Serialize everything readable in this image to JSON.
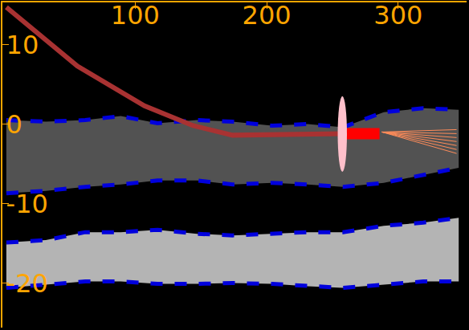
{
  "chart_data": {
    "type": "line",
    "xlim": [
      -1,
      352
    ],
    "ylim": [
      -25.6,
      15.3
    ],
    "xticks": [
      100,
      200,
      300
    ],
    "yticks": [
      10,
      0,
      -10,
      -20
    ],
    "grid": false,
    "series": [
      {
        "type": "line",
        "line_style": "dash",
        "color": "#0000dd",
        "x": [
          2,
          32,
          62,
          89,
          117,
          147,
          174,
          204,
          231,
          258,
          289,
          319,
          346
        ],
        "values": [
          0.5,
          0.3,
          0.5,
          1.0,
          0.1,
          0.5,
          0.3,
          -0.2,
          0.0,
          -0.4,
          1.5,
          2.0,
          1.8
        ]
      },
      {
        "type": "line",
        "line_style": "dash",
        "color": "#0000dd",
        "x": [
          2,
          32,
          62,
          89,
          117,
          147,
          174,
          204,
          231,
          258,
          289,
          319,
          346
        ],
        "values": [
          -8.7,
          -8.4,
          -7.9,
          -7.6,
          -7.1,
          -7.1,
          -7.6,
          -7.4,
          -7.6,
          -7.9,
          -7.4,
          -6.4,
          -5.5
        ]
      },
      {
        "type": "line",
        "line_style": "dash",
        "color": "#0000dd",
        "x": [
          2,
          32,
          62,
          89,
          117,
          147,
          174,
          204,
          231,
          258,
          289,
          319,
          346
        ],
        "values": [
          -14.9,
          -14.6,
          -13.6,
          -13.6,
          -13.3,
          -13.8,
          -14.0,
          -13.8,
          -13.6,
          -13.6,
          -12.8,
          -12.4,
          -11.8
        ]
      },
      {
        "type": "line",
        "line_style": "dash",
        "color": "#0000dd",
        "x": [
          2,
          32,
          62,
          89,
          117,
          147,
          174,
          204,
          231,
          258,
          289,
          319,
          346
        ],
        "values": [
          -20.6,
          -20.2,
          -19.8,
          -19.8,
          -20.1,
          -20.1,
          -20.0,
          -20.1,
          -20.4,
          -20.6,
          -20.2,
          -19.8,
          -19.8
        ]
      },
      {
        "type": "line",
        "line_style": "solid",
        "color": "#a83232",
        "x": [
          2,
          56,
          107,
          144,
          174,
          258
        ],
        "values": [
          14.7,
          7.3,
          2.3,
          -0.2,
          -1.4,
          -1.2
        ]
      },
      {
        "type": "line",
        "line_style": "thick",
        "color": "#ff0000",
        "x": [
          258.6,
          285.8
        ],
        "values": [
          -1.2,
          -1.2
        ]
      },
      {
        "type": "ellipse",
        "color": "#ffc0cb",
        "x": [
          254,
          261
        ],
        "values": [
          3.5,
          -6.0
        ]
      },
      {
        "type": "line",
        "line_style": "thin",
        "color": "#ff8c5a",
        "x": [
          287.6,
          344.4,
          null,
          287.6,
          344.4,
          null,
          287.6,
          344.4,
          null,
          287.6,
          344.4,
          null,
          287.6,
          344.4,
          null,
          287.6,
          344.4,
          null,
          287.6,
          344.4
        ],
        "values": [
          -1.0,
          -0.7,
          null,
          -1.0,
          -1.2,
          null,
          -1.0,
          -1.7,
          null,
          -1.0,
          -2.2,
          null,
          -1.0,
          -2.7,
          null,
          -1.0,
          -3.2,
          null,
          -1.0,
          -3.7
        ]
      }
    ]
  }
}
